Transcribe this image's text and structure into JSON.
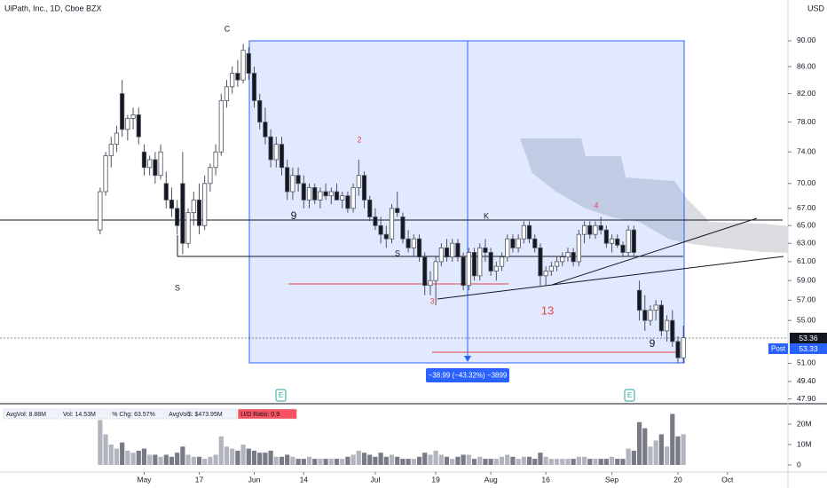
{
  "chart_data": [
    {
      "type": "candlestick",
      "title": "UiPath, Inc., 1D, Cboe BZX",
      "currency": "USD",
      "log_scale": true,
      "xlim": [
        -18.2,
        125
      ],
      "ylim": [
        47.5,
        96.7
      ],
      "xticks": [
        {
          "value": 8,
          "label": "May"
        },
        {
          "value": 18,
          "label": "17"
        },
        {
          "value": 28,
          "label": "Jun"
        },
        {
          "value": 37,
          "label": "14"
        },
        {
          "value": 50,
          "label": "Jul"
        },
        {
          "value": 61,
          "label": "19"
        },
        {
          "value": 71,
          "label": "Aug"
        },
        {
          "value": 81,
          "label": "16"
        },
        {
          "value": 93,
          "label": "Sep"
        },
        {
          "value": 105,
          "label": "20"
        },
        {
          "value": 114,
          "label": "Oct"
        }
      ],
      "yticks": [
        {
          "value": 90,
          "label": "90.00"
        },
        {
          "value": 86,
          "label": "86.00"
        },
        {
          "value": 82,
          "label": "82.00"
        },
        {
          "value": 78,
          "label": "78.00"
        },
        {
          "value": 74,
          "label": "74.00"
        },
        {
          "value": 70,
          "label": "70.00"
        },
        {
          "value": 67,
          "label": "67.00"
        },
        {
          "value": 65,
          "label": "65.00"
        },
        {
          "value": 63,
          "label": "63.00"
        },
        {
          "value": 61,
          "label": "61.00"
        },
        {
          "value": 59,
          "label": "59.00"
        },
        {
          "value": 57,
          "label": "57.00"
        },
        {
          "value": 55,
          "label": "55.00"
        },
        {
          "value": 51,
          "label": "51.00"
        },
        {
          "value": 49.4,
          "label": "49.40"
        },
        {
          "value": 47.9,
          "label": "47.90"
        }
      ],
      "up_color": "#ffffff",
      "down_color": "#131722",
      "outline_color": "#50535e",
      "x": [
        0,
        1,
        2,
        3,
        4,
        5,
        6,
        7,
        8,
        9,
        10,
        11,
        12,
        13,
        14,
        15,
        16,
        17,
        18,
        19,
        20,
        21,
        22,
        23,
        24,
        25,
        26,
        27,
        28,
        29,
        30,
        31,
        32,
        33,
        34,
        35,
        36,
        37,
        38,
        39,
        40,
        41,
        42,
        43,
        44,
        45,
        46,
        47,
        48,
        49,
        50,
        51,
        52,
        53,
        54,
        55,
        56,
        57,
        58,
        59,
        60,
        61,
        62,
        63,
        64,
        65,
        66,
        67,
        68,
        69,
        70,
        71,
        72,
        73,
        74,
        75,
        76,
        77,
        78,
        79,
        80,
        81,
        82,
        83,
        84,
        85,
        86,
        87,
        88,
        89,
        90,
        91,
        92,
        93,
        94,
        95,
        96,
        97,
        98,
        99,
        100,
        101,
        102,
        103,
        104,
        105,
        106
      ],
      "ohlc": [
        [
          64.5,
          69.5,
          64,
          69
        ],
        [
          69,
          74,
          68.5,
          73.5
        ],
        [
          73.5,
          76,
          72,
          75
        ],
        [
          75,
          77.5,
          74,
          76.5
        ],
        [
          82,
          84,
          76,
          77
        ],
        [
          77,
          79,
          75.5,
          78.5
        ],
        [
          78.5,
          80,
          77,
          79
        ],
        [
          79,
          80,
          75,
          76
        ],
        [
          74,
          75,
          71,
          72
        ],
        [
          72,
          73.5,
          71,
          73
        ],
        [
          73,
          74,
          70,
          71
        ],
        [
          71,
          75,
          70.5,
          74
        ],
        [
          70,
          71.5,
          67,
          68
        ],
        [
          68,
          69.5,
          66,
          67
        ],
        [
          67,
          68,
          64,
          65
        ],
        [
          70,
          74,
          61.8,
          63
        ],
        [
          63,
          67,
          62.5,
          66.5
        ],
        [
          66.5,
          69,
          65,
          68
        ],
        [
          68,
          70,
          64,
          65
        ],
        [
          65,
          71,
          64.5,
          70
        ],
        [
          70,
          72.5,
          69,
          72
        ],
        [
          72,
          75,
          71,
          74
        ],
        [
          74,
          82,
          73.5,
          81
        ],
        [
          81,
          84,
          80,
          83
        ],
        [
          83,
          86,
          82,
          85
        ],
        [
          85,
          87,
          83,
          84
        ],
        [
          84,
          89.5,
          83.5,
          88.5
        ],
        [
          88,
          89,
          84,
          85
        ],
        [
          85,
          86,
          80,
          81
        ],
        [
          81,
          82,
          77,
          78
        ],
        [
          78,
          80,
          75,
          76
        ],
        [
          76,
          77,
          72,
          73
        ],
        [
          73,
          76,
          72,
          75
        ],
        [
          75,
          76,
          71,
          72
        ],
        [
          72,
          73,
          68,
          69
        ],
        [
          69,
          72,
          68,
          71
        ],
        [
          71,
          72,
          69,
          70
        ],
        [
          70,
          71,
          67,
          68
        ],
        [
          68,
          70,
          67,
          69.5
        ],
        [
          69.5,
          70,
          67.5,
          68
        ],
        [
          68,
          69.5,
          67,
          69
        ],
        [
          69,
          70,
          68,
          68.5
        ],
        [
          68.5,
          69.5,
          67.5,
          69
        ],
        [
          69,
          70,
          68,
          68
        ],
        [
          68,
          69,
          67,
          68.5
        ],
        [
          68.5,
          69,
          66.5,
          67
        ],
        [
          67,
          70,
          66.5,
          69.5
        ],
        [
          69.5,
          73,
          68.5,
          71
        ],
        [
          71,
          71.5,
          67,
          68
        ],
        [
          68,
          68.5,
          65.5,
          66
        ],
        [
          66,
          67,
          64.5,
          65
        ],
        [
          65,
          66,
          63,
          64
        ],
        [
          64,
          65,
          62.5,
          63.5
        ],
        [
          63.5,
          67.5,
          63,
          67
        ],
        [
          67,
          69,
          66,
          66.5
        ],
        [
          66,
          66.5,
          63,
          63.5
        ],
        [
          63.5,
          64.5,
          62,
          62.5
        ],
        [
          62.5,
          64,
          61.5,
          63.5
        ],
        [
          63.5,
          64,
          61,
          61.5
        ],
        [
          61.5,
          62,
          57.5,
          58.5
        ],
        [
          58.5,
          60,
          57.5,
          59
        ],
        [
          59,
          61.5,
          56.5,
          61
        ],
        [
          61,
          63,
          60.5,
          62.5
        ],
        [
          62.5,
          63.5,
          61,
          61.5
        ],
        [
          61.5,
          63.5,
          61,
          63
        ],
        [
          63,
          63.5,
          61,
          61.5
        ],
        [
          61.5,
          62,
          58,
          58.5
        ],
        [
          58.5,
          62.5,
          58,
          62
        ],
        [
          62,
          62.5,
          59,
          59.5
        ],
        [
          59.5,
          63,
          59,
          62.5
        ],
        [
          62.5,
          63.5,
          61,
          62
        ],
        [
          62,
          62.5,
          59.5,
          60
        ],
        [
          60,
          61,
          59,
          60.5
        ],
        [
          60.5,
          62,
          60,
          61.5
        ],
        [
          61.5,
          64,
          61,
          63.5
        ],
        [
          63.5,
          64,
          62,
          62.5
        ],
        [
          62.5,
          64,
          62,
          63.5
        ],
        [
          63.5,
          65.5,
          63,
          65
        ],
        [
          65,
          65.5,
          63,
          63.5
        ],
        [
          63.5,
          64,
          62,
          62.5
        ],
        [
          62.5,
          63,
          58.5,
          59.5
        ],
        [
          59.5,
          60.5,
          58.5,
          60
        ],
        [
          60,
          61,
          59.5,
          60.5
        ],
        [
          60.5,
          61.5,
          60,
          61
        ],
        [
          61,
          62,
          60.5,
          61.5
        ],
        [
          61.5,
          62.5,
          61,
          62
        ],
        [
          62,
          62.5,
          60.5,
          61
        ],
        [
          61,
          64.5,
          60.5,
          64
        ],
        [
          64,
          65.5,
          63,
          65
        ],
        [
          65,
          65.5,
          63.5,
          64
        ],
        [
          64,
          65.5,
          63.5,
          65
        ],
        [
          65,
          66,
          64,
          64.5
        ],
        [
          64.5,
          65,
          62.5,
          63
        ],
        [
          63,
          64,
          62,
          63.5
        ],
        [
          63.5,
          64,
          62.5,
          62.8
        ],
        [
          62.8,
          63.2,
          61.5,
          62
        ],
        [
          62,
          65,
          61.5,
          64.5
        ],
        [
          64.5,
          65,
          61.5,
          62
        ],
        [
          58,
          59,
          55,
          56
        ],
        [
          56,
          57.5,
          54,
          55
        ],
        [
          55,
          56.5,
          54.5,
          56
        ],
        [
          56,
          57,
          55,
          56.5
        ],
        [
          56.5,
          57,
          53.5,
          54
        ],
        [
          54,
          55.5,
          53,
          55
        ],
        [
          55,
          56,
          52.5,
          53
        ],
        [
          53,
          53.5,
          51,
          51.5
        ],
        [
          51.5,
          54.5,
          51,
          53.36
        ]
      ],
      "last_price": {
        "value": 53.36,
        "label": "53.36"
      },
      "post_price": {
        "value": 53.33,
        "label": "53.33"
      },
      "post_label": "Post",
      "measure_label": "−38.99 (−43.32%) −3899",
      "earnings_marker": "E",
      "annotations": [
        "C",
        "2",
        "4",
        "K",
        "S",
        "S",
        "3",
        "13",
        "9",
        "9"
      ]
    },
    {
      "type": "bar",
      "ylim": [
        0,
        28.7
      ],
      "yticks": [
        {
          "value": 20,
          "label": "20M"
        },
        {
          "value": 10,
          "label": "10M"
        },
        0
      ],
      "stats": [
        "AvgVol: 8.88M",
        "Vol: 14.53M",
        "% Chg: 63.57%",
        "AvgVol$: $473.95M",
        "U/D Ratio: 0.9"
      ],
      "up_color": "#b2b5be",
      "down_color": "#787b86",
      "values": [
        22,
        15,
        10,
        8,
        11,
        7,
        6,
        7,
        8,
        5,
        5,
        4,
        5,
        4,
        6,
        9,
        5,
        4,
        4,
        3,
        4,
        5,
        14,
        9,
        8,
        7,
        10,
        8,
        7,
        6,
        6,
        7,
        4,
        4,
        5,
        4,
        3,
        3,
        4,
        3,
        3,
        3,
        3,
        3,
        3,
        4,
        5,
        7,
        6,
        5,
        4,
        6,
        4,
        5,
        4,
        3,
        3,
        3,
        4,
        6,
        5,
        7,
        5,
        4,
        3,
        4,
        5,
        5,
        3,
        4,
        3,
        3,
        3,
        4,
        5,
        4,
        3,
        4,
        4,
        3,
        6,
        4,
        3,
        3,
        3,
        3,
        3,
        4,
        4,
        3,
        3,
        3,
        3,
        4,
        3,
        3,
        8,
        7,
        21,
        18,
        9,
        12,
        15,
        9,
        25,
        14,
        15
      ]
    }
  ]
}
